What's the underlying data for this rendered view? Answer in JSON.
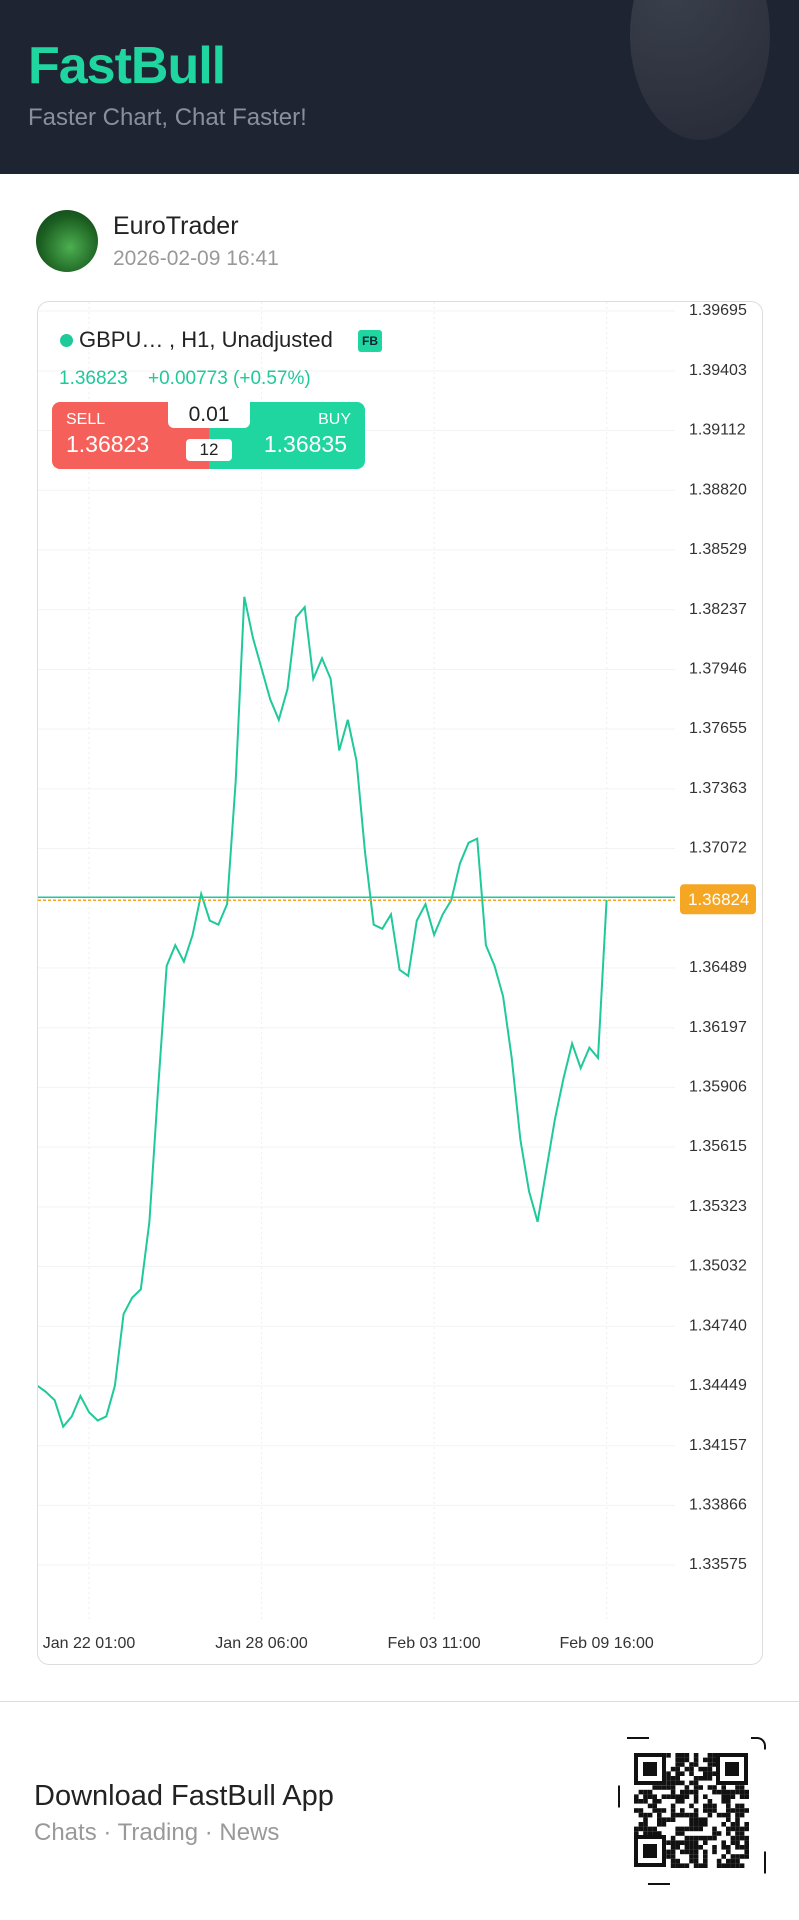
{
  "header": {
    "title": "FastBull",
    "subtitle": "Faster Chart, Chat Faster!"
  },
  "post": {
    "user": "EuroTrader",
    "time": "2026-02-09 16:41"
  },
  "widget": {
    "symbol": "GBPU…",
    "interval": ", H1, Unadjusted",
    "badge": "FB",
    "price": "1.36823",
    "change": "+0.00773 (+0.57%)",
    "sell_label": "SELL",
    "sell_price": "1.36823",
    "lot": "0.01",
    "spread": "12",
    "buy_label": "BUY",
    "buy_price": "1.36835"
  },
  "chart_data": {
    "type": "line",
    "categories": [
      null,
      null,
      null,
      null,
      null,
      null,
      "Jan 22 01:00",
      null,
      null,
      null,
      null,
      null,
      null,
      null,
      null,
      null,
      null,
      null,
      null,
      null,
      null,
      null,
      null,
      null,
      null,
      null,
      "Jan 28 06:00",
      null,
      null,
      null,
      null,
      null,
      null,
      null,
      null,
      null,
      null,
      null,
      null,
      null,
      null,
      null,
      null,
      null,
      null,
      null,
      "Feb 03 11:00",
      null,
      null,
      null,
      null,
      null,
      null,
      null,
      null,
      null,
      null,
      null,
      null,
      null,
      null,
      null,
      null,
      null,
      null,
      null,
      "Feb 09 16:00"
    ],
    "series": [
      {
        "color": "#1fc99a",
        "values": [
          1.3445,
          1.3442,
          1.3438,
          1.3425,
          1.343,
          1.344,
          1.3432,
          1.3428,
          1.343,
          1.3445,
          1.348,
          1.3488,
          1.3492,
          1.3525,
          1.359,
          1.365,
          1.366,
          1.3652,
          1.3665,
          1.3685,
          1.3672,
          1.367,
          1.368,
          1.374,
          1.383,
          1.381,
          1.3795,
          1.378,
          1.377,
          1.3785,
          1.382,
          1.3825,
          1.379,
          1.38,
          1.379,
          1.3755,
          1.377,
          1.375,
          1.3705,
          1.367,
          1.3668,
          1.3675,
          1.3648,
          1.3645,
          1.3672,
          1.368,
          1.3665,
          1.3675,
          1.3682,
          1.37,
          1.371,
          1.3712,
          1.366,
          1.365,
          1.3635,
          1.3605,
          1.3565,
          1.354,
          1.3525,
          1.355,
          1.3575,
          1.3595,
          1.3612,
          1.36,
          1.361,
          1.3605,
          1.3682
        ]
      }
    ],
    "ylim": [
      1.33575,
      1.39695
    ],
    "yticks": [
      1.39695,
      1.39403,
      1.39112,
      {
        "value": 1.3882,
        "label": "1.38820"
      },
      1.38529,
      1.38237,
      1.37946,
      1.37655,
      1.37363,
      1.37072,
      1.36489,
      1.36197,
      1.35906,
      1.35615,
      1.35323,
      1.35032,
      {
        "value": 1.3474,
        "label": "1.34740"
      },
      1.34449,
      1.34157,
      1.33866,
      1.33575
    ],
    "last_price": 1.36824,
    "last_price_color": "#f5a623",
    "grid": true
  },
  "footer": {
    "title": "Download FastBull App",
    "subtitle": "Chats · Trading · News"
  }
}
